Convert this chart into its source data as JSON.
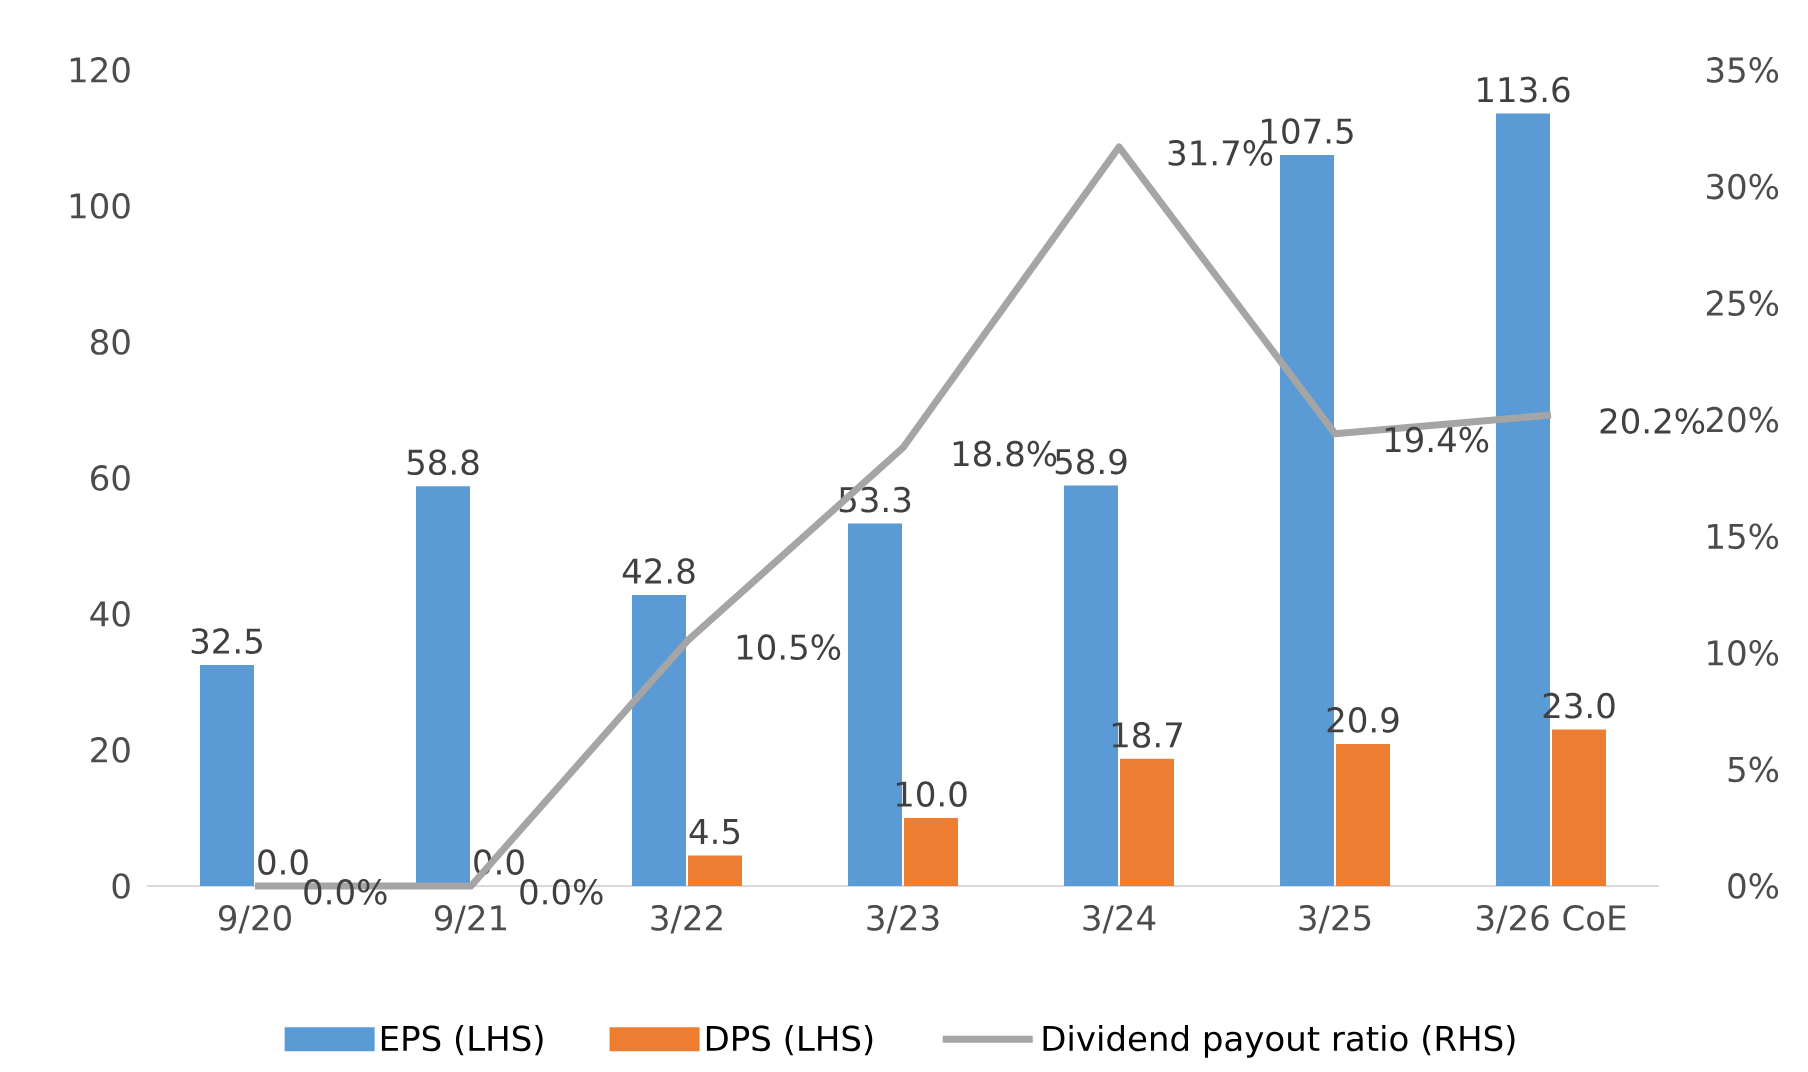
{
  "chart_data": {
    "type": "bar",
    "categories": [
      "9/20",
      "9/21",
      "3/22",
      "3/23",
      "3/24",
      "3/25",
      "3/26 CoE"
    ],
    "series": [
      {
        "name": "EPS (LHS)",
        "color": "#5b9bd5",
        "values": [
          32.5,
          58.8,
          42.8,
          53.3,
          58.9,
          107.5,
          113.6
        ],
        "value_labels": [
          "32.5",
          "58.8",
          "42.8",
          "53.3",
          "58.9",
          "107.5",
          "113.6"
        ]
      },
      {
        "name": "DPS (LHS)",
        "color": "#ed7d31",
        "values": [
          0.0,
          0.0,
          4.5,
          10.0,
          18.7,
          20.9,
          23.0
        ],
        "value_labels": [
          "0.0",
          "0.0",
          "4.5",
          "10.0",
          "18.7",
          "20.9",
          "23.0"
        ]
      },
      {
        "name": "Dividend payout ratio (RHS)",
        "type": "line",
        "axis": "y2",
        "color": "#a5a5a5",
        "values": [
          0.0,
          0.0,
          10.5,
          18.8,
          31.7,
          19.4,
          20.2
        ],
        "value_labels": [
          "0.0%",
          "0.0%",
          "10.5%",
          "18.8%",
          "31.7%",
          "19.4%",
          "20.2%"
        ]
      }
    ],
    "ylim": [
      0,
      120
    ],
    "yticks": [
      0,
      20,
      40,
      60,
      80,
      100,
      120
    ],
    "y2lim": [
      0,
      35
    ],
    "y2ticks": [
      {
        "value": 0,
        "label": "0%"
      },
      {
        "value": 5,
        "label": "5%"
      },
      {
        "value": 10,
        "label": "10%"
      },
      {
        "value": 15,
        "label": "15%"
      },
      {
        "value": 20,
        "label": "20%"
      },
      {
        "value": 25,
        "label": "25%"
      },
      {
        "value": 30,
        "label": "30%"
      },
      {
        "value": 35,
        "label": "35%"
      }
    ],
    "legend": "bottom",
    "marker": "none",
    "line_style": "solid"
  }
}
